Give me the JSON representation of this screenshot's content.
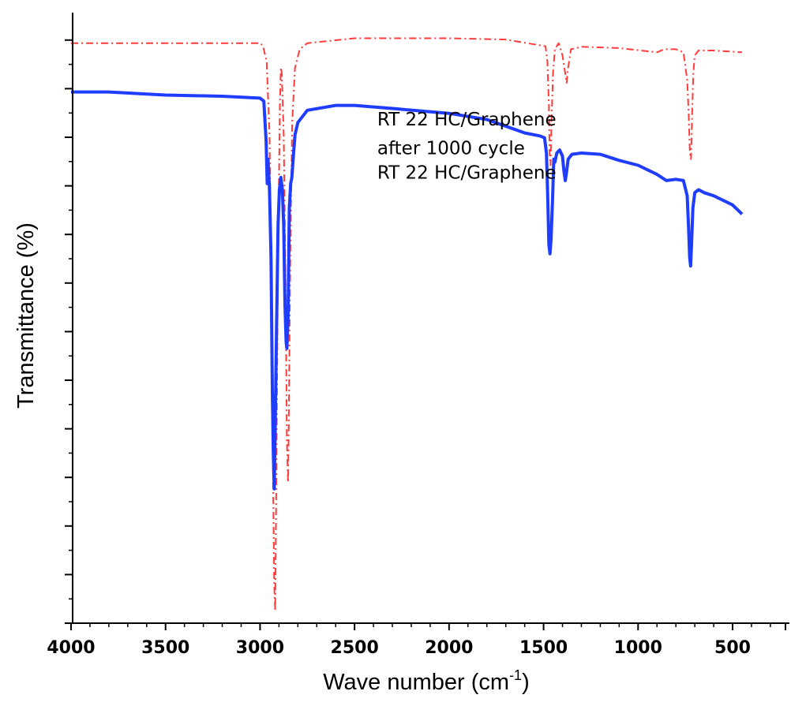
{
  "chart_data": {
    "type": "line",
    "xlabel": "Wave number (cm",
    "xlabel_superscript": "-1",
    "xlabel_suffix": ")",
    "ylabel": "Transmittance (%)",
    "xlim": [
      4000,
      220
    ],
    "x_reversed": true,
    "ylim": [
      0,
      100
    ],
    "x_ticks": [
      4000,
      3500,
      3000,
      2500,
      2000,
      1500,
      1000,
      500
    ],
    "x_tick_labels": [
      "4000",
      "3500",
      "3000",
      "2500",
      "2000",
      "1500",
      "1000",
      "500"
    ],
    "x_tick_labels_shown": false,
    "grid": false,
    "annotations": [
      {
        "text": "RT 22 HC/Graphene",
        "x": 2380,
        "y": 81.5
      },
      {
        "text": "after 1000 cycle",
        "x": 2380,
        "y": 76.8
      },
      {
        "text": "RT 22 HC/Graphene",
        "x": 2380,
        "y": 72.8
      }
    ],
    "series": [
      {
        "color": "#ff3b3b",
        "style": "dashdot",
        "points": [
          [
            4000,
            95
          ],
          [
            3500,
            95
          ],
          [
            3000,
            95
          ],
          [
            2985,
            94.6
          ],
          [
            2965,
            92
          ],
          [
            2950,
            80
          ],
          [
            2940,
            55
          ],
          [
            2930,
            20
          ],
          [
            2925,
            6
          ],
          [
            2920,
            2
          ],
          [
            2915,
            20
          ],
          [
            2905,
            60
          ],
          [
            2895,
            85
          ],
          [
            2890,
            91
          ],
          [
            2885,
            90
          ],
          [
            2875,
            80
          ],
          [
            2865,
            55
          ],
          [
            2858,
            30
          ],
          [
            2852,
            23
          ],
          [
            2848,
            33
          ],
          [
            2840,
            60
          ],
          [
            2830,
            82
          ],
          [
            2815,
            91
          ],
          [
            2790,
            94
          ],
          [
            2750,
            95
          ],
          [
            2500,
            95.8
          ],
          [
            2000,
            95.8
          ],
          [
            1700,
            95.6
          ],
          [
            1550,
            94.8
          ],
          [
            1490,
            94.5
          ],
          [
            1480,
            92
          ],
          [
            1472,
            85
          ],
          [
            1468,
            77
          ],
          [
            1463,
            75
          ],
          [
            1458,
            82
          ],
          [
            1450,
            90
          ],
          [
            1440,
            94
          ],
          [
            1420,
            95
          ],
          [
            1400,
            93
          ],
          [
            1385,
            90
          ],
          [
            1378,
            88.5
          ],
          [
            1370,
            91
          ],
          [
            1355,
            94
          ],
          [
            1300,
            94.4
          ],
          [
            1100,
            94.2
          ],
          [
            900,
            93.5
          ],
          [
            860,
            94
          ],
          [
            800,
            94
          ],
          [
            760,
            93.5
          ],
          [
            740,
            89
          ],
          [
            732,
            83
          ],
          [
            726,
            77
          ],
          [
            720,
            76
          ],
          [
            715,
            82
          ],
          [
            708,
            90
          ],
          [
            700,
            93
          ],
          [
            680,
            93.8
          ],
          [
            600,
            93.8
          ],
          [
            450,
            93.5
          ]
        ]
      },
      {
        "color": "#1f3dff",
        "style": "solid",
        "points": [
          [
            4000,
            87
          ],
          [
            3800,
            87
          ],
          [
            3500,
            86.5
          ],
          [
            3200,
            86.3
          ],
          [
            3000,
            86
          ],
          [
            2980,
            85.5
          ],
          [
            2968,
            79
          ],
          [
            2962,
            72
          ],
          [
            2958,
            76
          ],
          [
            2950,
            71
          ],
          [
            2942,
            60
          ],
          [
            2935,
            38
          ],
          [
            2930,
            28
          ],
          [
            2925,
            22
          ],
          [
            2920,
            32
          ],
          [
            2912,
            50
          ],
          [
            2905,
            65
          ],
          [
            2898,
            71
          ],
          [
            2890,
            73
          ],
          [
            2882,
            71
          ],
          [
            2875,
            65
          ],
          [
            2868,
            52
          ],
          [
            2862,
            46
          ],
          [
            2858,
            45
          ],
          [
            2852,
            50
          ],
          [
            2845,
            68
          ],
          [
            2838,
            72
          ],
          [
            2832,
            73
          ],
          [
            2825,
            76
          ],
          [
            2815,
            80
          ],
          [
            2800,
            82
          ],
          [
            2750,
            84
          ],
          [
            2600,
            84.8
          ],
          [
            2500,
            84.8
          ],
          [
            2300,
            84.3
          ],
          [
            2000,
            83.5
          ],
          [
            1800,
            82.5
          ],
          [
            1600,
            80.3
          ],
          [
            1520,
            79.8
          ],
          [
            1495,
            79.5
          ],
          [
            1485,
            77
          ],
          [
            1478,
            70
          ],
          [
            1472,
            62
          ],
          [
            1466,
            60.5
          ],
          [
            1460,
            63
          ],
          [
            1452,
            70
          ],
          [
            1446,
            76
          ],
          [
            1440,
            75.5
          ],
          [
            1430,
            77
          ],
          [
            1415,
            77.5
          ],
          [
            1400,
            76.5
          ],
          [
            1392,
            74
          ],
          [
            1385,
            72.5
          ],
          [
            1378,
            74
          ],
          [
            1370,
            76
          ],
          [
            1350,
            76.8
          ],
          [
            1300,
            77
          ],
          [
            1200,
            76.8
          ],
          [
            1100,
            75.8
          ],
          [
            1000,
            75
          ],
          [
            900,
            73.5
          ],
          [
            850,
            72.5
          ],
          [
            800,
            72.7
          ],
          [
            760,
            72.5
          ],
          [
            740,
            70
          ],
          [
            733,
            65
          ],
          [
            727,
            60
          ],
          [
            722,
            58.5
          ],
          [
            717,
            62
          ],
          [
            710,
            68
          ],
          [
            700,
            70.5
          ],
          [
            680,
            71
          ],
          [
            650,
            70.5
          ],
          [
            600,
            70
          ],
          [
            500,
            68.5
          ],
          [
            450,
            67
          ]
        ]
      }
    ]
  }
}
